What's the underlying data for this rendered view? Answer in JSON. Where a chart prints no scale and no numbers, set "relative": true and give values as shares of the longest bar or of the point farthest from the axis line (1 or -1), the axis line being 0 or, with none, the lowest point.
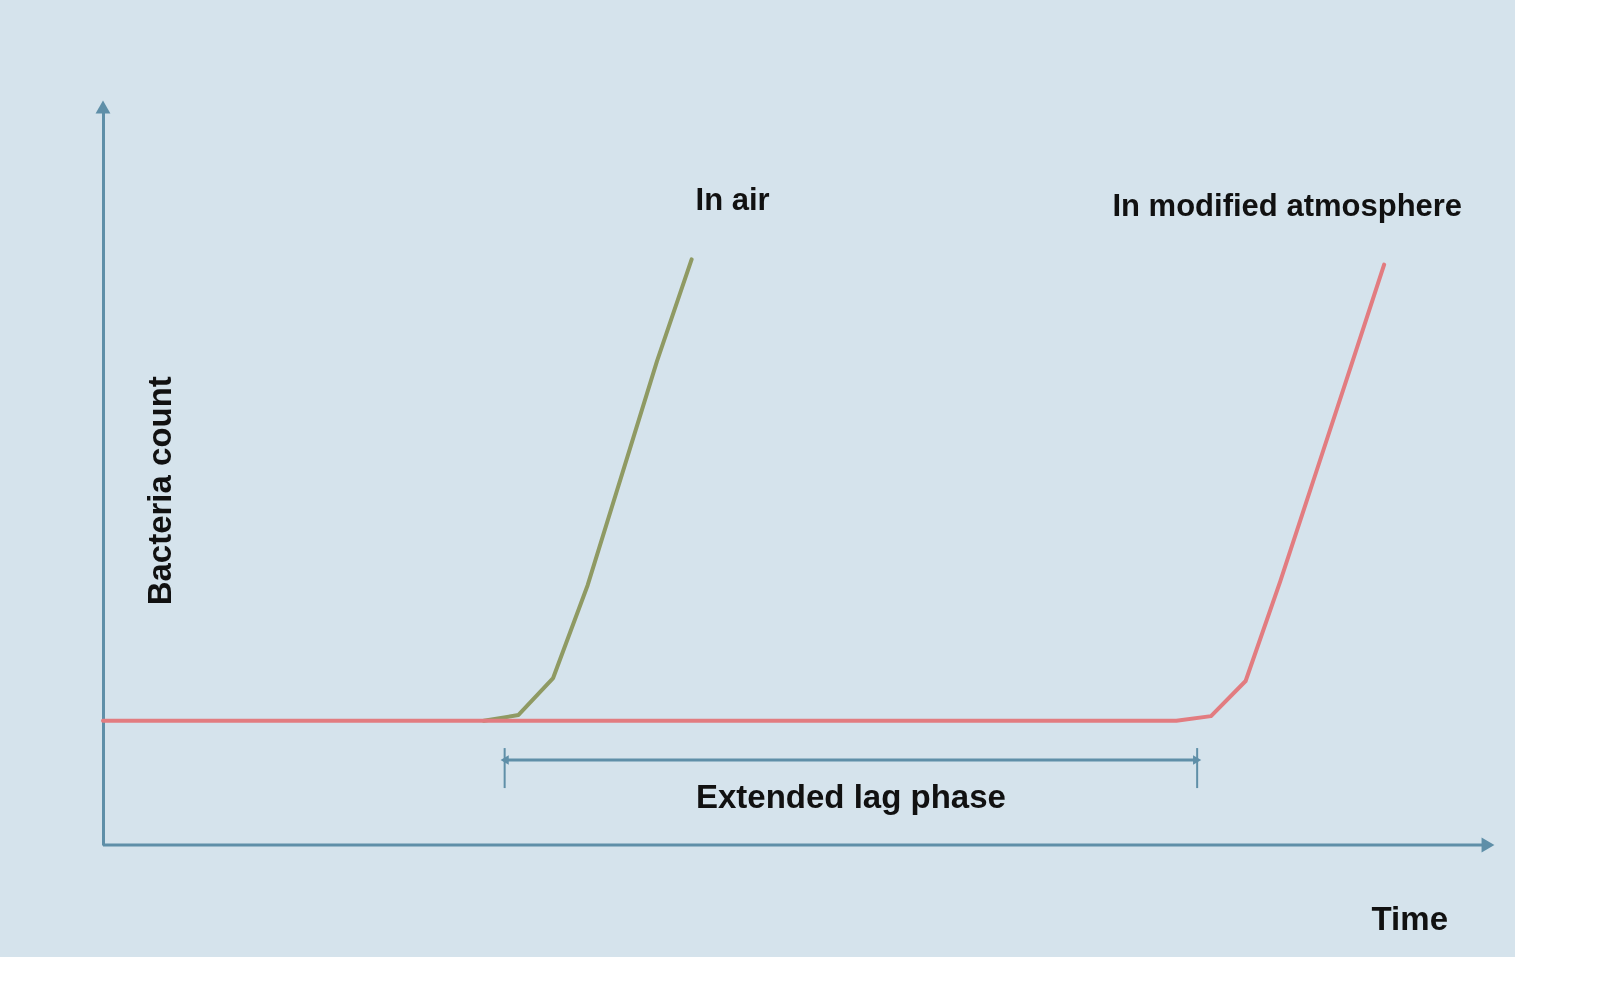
{
  "chart_data": {
    "type": "line",
    "relative": true,
    "xlabel": "Time",
    "ylabel": "Bacteria count",
    "categories": [
      null,
      null,
      null,
      null,
      null,
      null,
      null,
      null,
      null,
      null,
      null,
      null,
      null,
      null,
      null,
      null,
      null,
      null,
      null,
      null,
      null,
      null,
      null,
      null,
      null,
      null,
      null,
      null,
      null,
      null,
      null,
      null,
      null,
      null,
      null,
      null,
      null,
      null,
      null,
      null
    ],
    "grid": false,
    "marker": "none",
    "line_style": "solid",
    "series": [
      {
        "name": "In air",
        "color": "#8f9a63",
        "values": [
          null,
          null,
          null,
          null,
          null,
          null,
          null,
          null,
          null,
          null,
          null,
          0.212,
          0.222,
          0.285,
          0.444,
          0.635,
          0.826,
          1.0,
          null,
          null,
          null,
          null,
          null,
          null,
          null,
          null,
          null,
          null,
          null,
          null,
          null,
          null,
          null,
          null,
          null,
          null,
          null,
          null,
          null,
          null
        ]
      },
      {
        "name": "In modified atmosphere",
        "color": "#e27c80",
        "values": [
          0.212,
          0.212,
          0.212,
          0.212,
          0.212,
          0.212,
          0.212,
          0.212,
          0.212,
          0.212,
          0.212,
          0.212,
          0.212,
          0.212,
          0.212,
          0.212,
          0.212,
          0.212,
          0.212,
          0.212,
          0.212,
          0.212,
          0.212,
          0.212,
          0.212,
          0.212,
          0.212,
          0.212,
          0.212,
          0.212,
          0.212,
          0.212,
          0.22,
          0.28,
          0.45,
          0.63,
          0.81,
          0.991,
          null,
          null
        ]
      }
    ],
    "annotations": [
      "Extended lag phase"
    ]
  }
}
